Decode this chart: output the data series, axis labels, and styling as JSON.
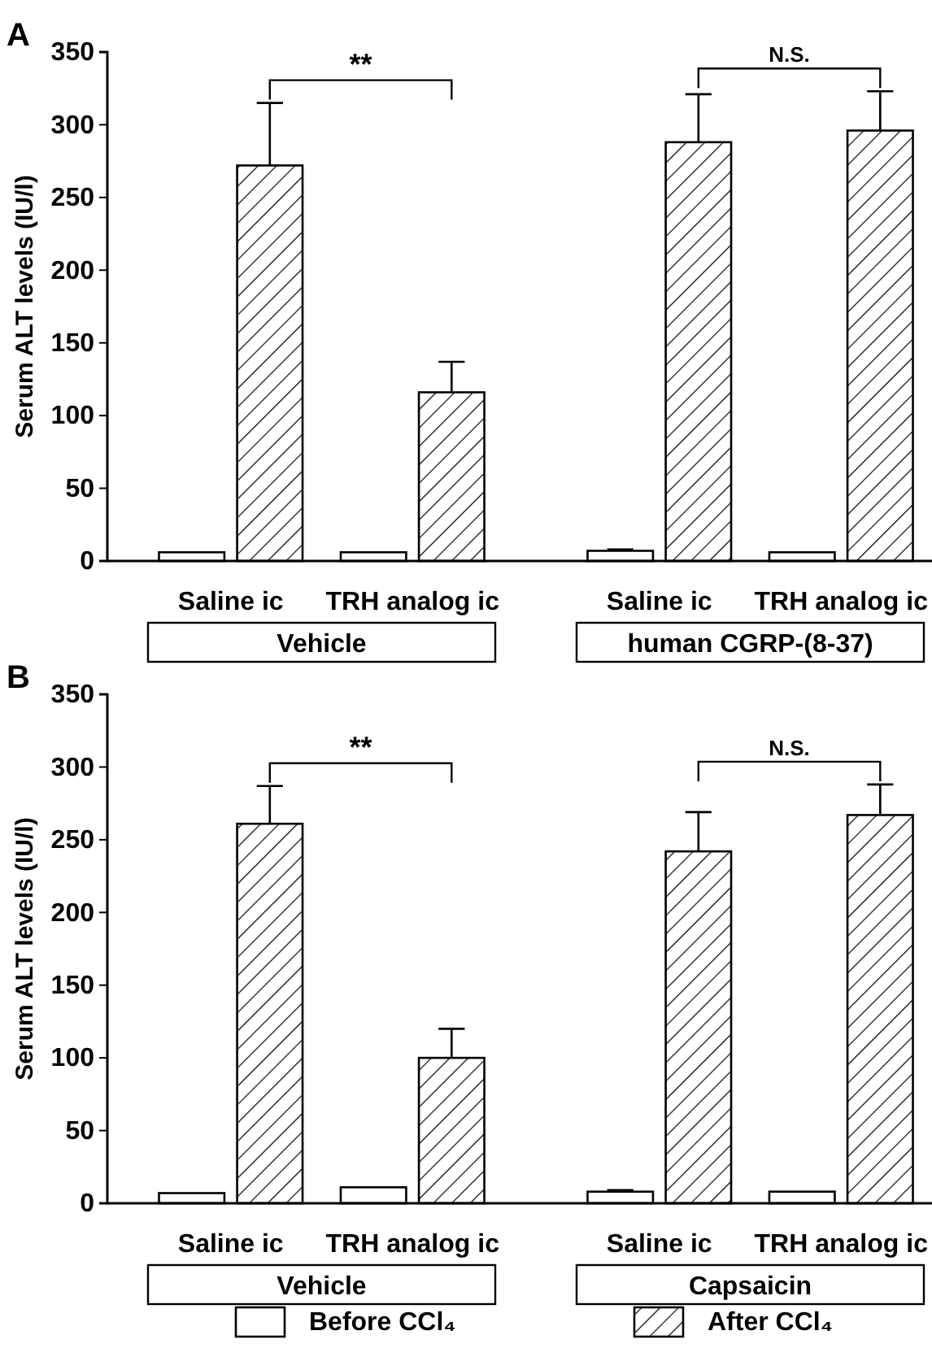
{
  "chart_data": [
    {
      "type": "bar",
      "title": "A",
      "ylabel": "Serum ALT levels (IU/l)",
      "categories": [
        "Saline ic",
        "TRH analog ic",
        "Saline ic",
        "TRH analog ic"
      ],
      "ylim": [
        0,
        350
      ],
      "yticks": [
        0,
        50,
        100,
        150,
        200,
        250,
        300,
        350
      ],
      "grid": false,
      "legend": false,
      "series": [
        {
          "color": "#ffffff",
          "values": [
            6,
            6,
            7,
            6
          ],
          "errors": [
            null,
            null,
            1,
            null
          ]
        },
        {
          "color": "#000000",
          "values": [
            272,
            116,
            288,
            296
          ],
          "errors": [
            43,
            21,
            33,
            27
          ]
        }
      ],
      "annotations": [
        "Vehicle",
        "human CGRP-(8-37)",
        "**",
        "N.S."
      ]
    },
    {
      "type": "bar",
      "title": "B",
      "ylabel": "Serum ALT levels (IU/l)",
      "categories": [
        "Saline ic",
        "TRH analog ic",
        "Saline ic",
        "TRH analog ic"
      ],
      "ylim": [
        0,
        350
      ],
      "yticks": [
        0,
        50,
        100,
        150,
        200,
        250,
        300,
        350
      ],
      "grid": false,
      "legend": "bottom",
      "series": [
        {
          "name": "Before CCl₄",
          "color": "#ffffff",
          "values": [
            7,
            11,
            8,
            8
          ],
          "errors": [
            null,
            null,
            1,
            null
          ]
        },
        {
          "name": "After CCl₄",
          "color": "#000000",
          "values": [
            261,
            100,
            242,
            267
          ],
          "errors": [
            26,
            20,
            27,
            21
          ]
        }
      ],
      "annotations": [
        "Vehicle",
        "Capsaicin",
        "**",
        "N.S."
      ]
    }
  ]
}
